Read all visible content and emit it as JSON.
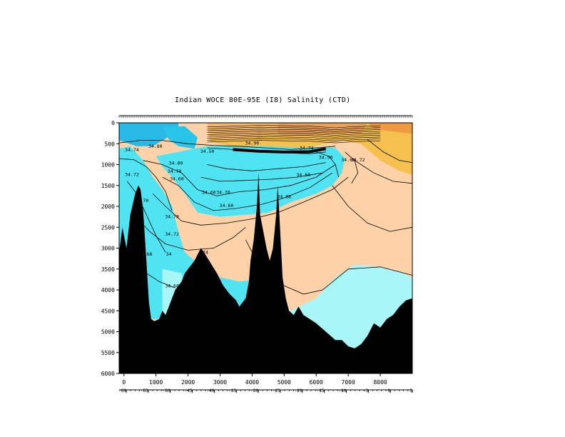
{
  "chart_data": {
    "type": "heatmap",
    "title": "Indian WOCE 80E-95E (I8) Salinity (CTD)",
    "xlabel": "",
    "ylabel": "",
    "xlim": [
      -150,
      9000
    ],
    "ylim": [
      6000,
      0
    ],
    "x_ticks": [
      0,
      1000,
      2000,
      3000,
      4000,
      5000,
      6000,
      7000,
      8000
    ],
    "y_ticks": [
      0,
      500,
      1000,
      1500,
      2000,
      2500,
      3000,
      3500,
      4000,
      4500,
      5000,
      5500,
      6000
    ],
    "latitude_ticks": [
      "-60",
      "-55",
      "-50",
      "-45",
      "-40",
      "-35",
      "-30",
      "-25",
      "-20",
      "-15",
      "-10",
      "-5",
      "0",
      "5"
    ],
    "colors": {
      "high_salinity": "#f5c04e",
      "upper_orange": "#eaa25a",
      "mid_salinity": "#fdd2a8",
      "low_salinity": "#50e4f2",
      "lowest_salinity": "#2ab8e6",
      "deep_low": "#a8f6f8",
      "bathymetry": "#000000"
    },
    "contour_labels": [
      {
        "x": 250,
        "y": 680,
        "label": "34.74"
      },
      {
        "x": 980,
        "y": 600,
        "label": "34.80"
      },
      {
        "x": 1620,
        "y": 1000,
        "label": "34.80"
      },
      {
        "x": 1580,
        "y": 1200,
        "label": "34.70"
      },
      {
        "x": 1650,
        "y": 1380,
        "label": "34.60"
      },
      {
        "x": 2600,
        "y": 720,
        "label": "34.50"
      },
      {
        "x": 4000,
        "y": 520,
        "label": "34.90"
      },
      {
        "x": 5700,
        "y": 640,
        "label": "34.74"
      },
      {
        "x": 6300,
        "y": 860,
        "label": "34.50"
      },
      {
        "x": 7000,
        "y": 920,
        "label": "34.60"
      },
      {
        "x": 7300,
        "y": 920,
        "label": "34.72"
      },
      {
        "x": 5600,
        "y": 1280,
        "label": "34.60"
      },
      {
        "x": 5000,
        "y": 1800,
        "label": "34.68"
      },
      {
        "x": 2650,
        "y": 1700,
        "label": "34.60"
      },
      {
        "x": 3100,
        "y": 1700,
        "label": "34.70"
      },
      {
        "x": 3200,
        "y": 2020,
        "label": "34.60"
      },
      {
        "x": 250,
        "y": 1270,
        "label": "34.72"
      },
      {
        "x": 550,
        "y": 1900,
        "label": "34.70"
      },
      {
        "x": 1500,
        "y": 2280,
        "label": "34.70"
      },
      {
        "x": 1500,
        "y": 2700,
        "label": "34.72"
      },
      {
        "x": 750,
        "y": 3180,
        "label": ".68"
      },
      {
        "x": 1400,
        "y": 3180,
        "label": "34"
      },
      {
        "x": 2500,
        "y": 3140,
        "label": ".74"
      },
      {
        "x": 1500,
        "y": 3940,
        "label": "34.68"
      }
    ]
  }
}
